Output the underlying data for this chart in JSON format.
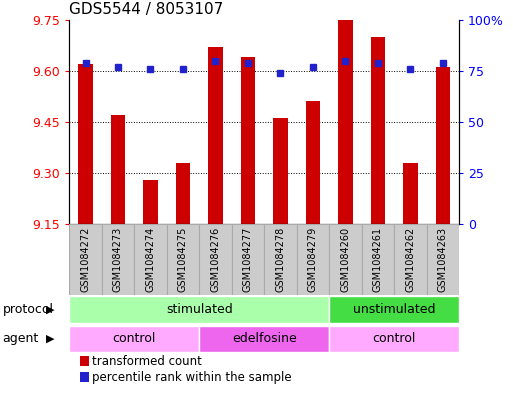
{
  "title": "GDS5544 / 8053107",
  "samples": [
    "GSM1084272",
    "GSM1084273",
    "GSM1084274",
    "GSM1084275",
    "GSM1084276",
    "GSM1084277",
    "GSM1084278",
    "GSM1084279",
    "GSM1084260",
    "GSM1084261",
    "GSM1084262",
    "GSM1084263"
  ],
  "bar_values": [
    9.62,
    9.47,
    9.28,
    9.33,
    9.67,
    9.64,
    9.46,
    9.51,
    9.75,
    9.7,
    9.33,
    9.61
  ],
  "percentile_values": [
    79,
    77,
    76,
    76,
    80,
    79,
    74,
    77,
    80,
    79,
    76,
    79
  ],
  "ymin": 9.15,
  "ymax": 9.75,
  "yticks": [
    9.15,
    9.3,
    9.45,
    9.6,
    9.75
  ],
  "right_yticks": [
    0,
    25,
    50,
    75,
    100
  ],
  "bar_color": "#cc0000",
  "dot_color": "#2222cc",
  "bar_width": 0.45,
  "protocol_groups": [
    {
      "label": "stimulated",
      "start": 0,
      "end": 8,
      "color": "#aaffaa"
    },
    {
      "label": "unstimulated",
      "start": 8,
      "end": 12,
      "color": "#44dd44"
    }
  ],
  "agent_groups": [
    {
      "label": "control",
      "start": 0,
      "end": 4,
      "color": "#ffaaff"
    },
    {
      "label": "edelfosine",
      "start": 4,
      "end": 8,
      "color": "#ee66ee"
    },
    {
      "label": "control",
      "start": 8,
      "end": 12,
      "color": "#ffaaff"
    }
  ],
  "legend_bar_label": "transformed count",
  "legend_dot_label": "percentile rank within the sample",
  "sample_fontsize": 7,
  "title_fontsize": 11,
  "tick_fontsize": 9,
  "label_fontsize": 9,
  "group_fontsize": 9,
  "sample_box_color": "#cccccc",
  "sample_box_edgecolor": "#aaaaaa"
}
